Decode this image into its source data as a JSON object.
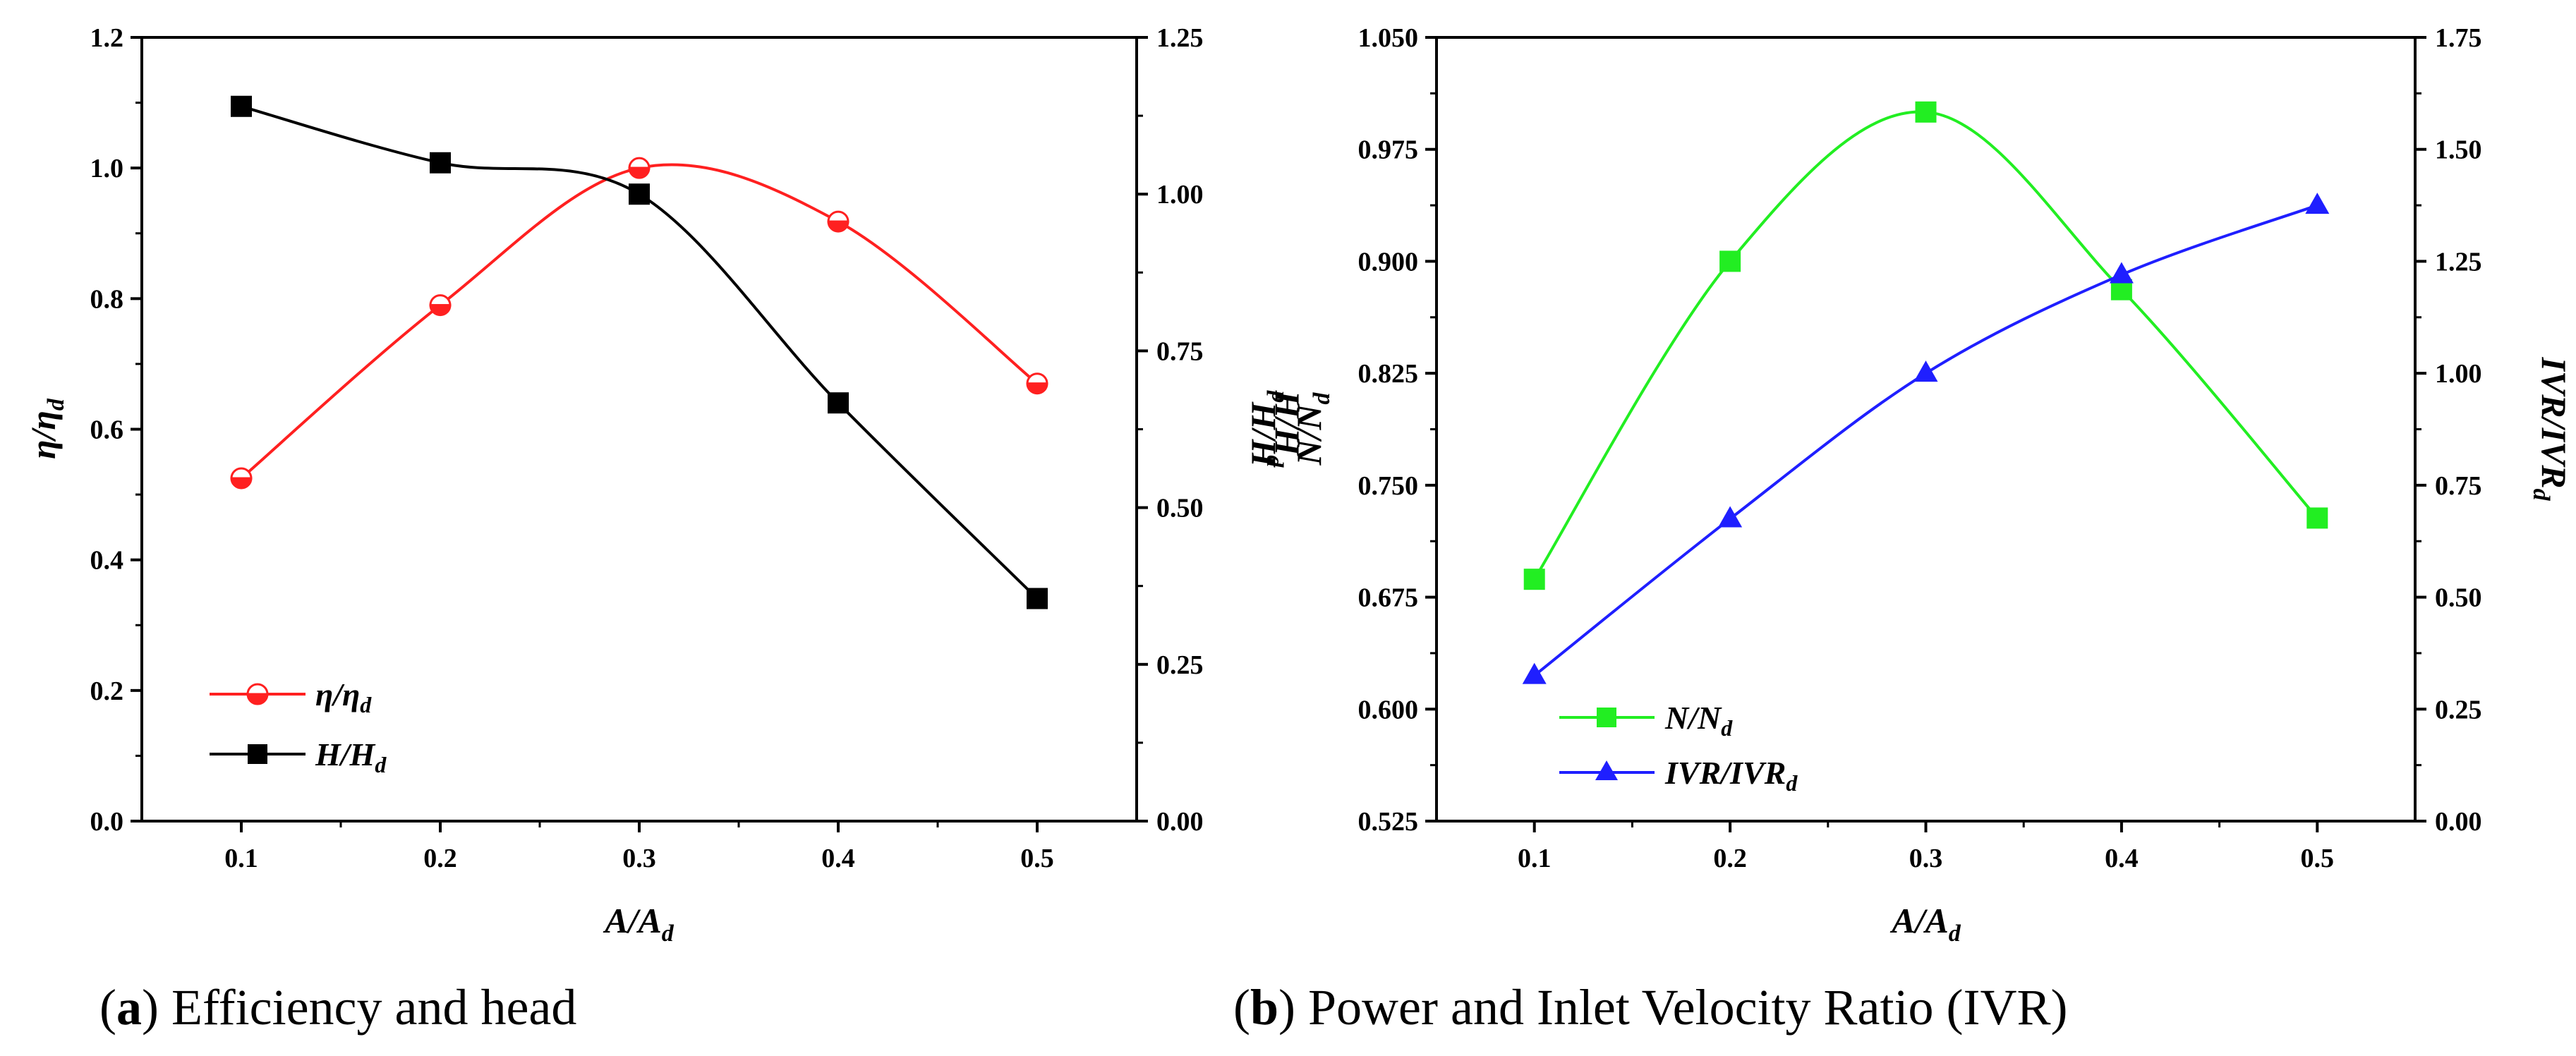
{
  "chart_data": [
    {
      "type": "line",
      "caption": {
        "letter": "a",
        "text": "Efficiency and head"
      },
      "x": [
        0.1,
        0.2,
        0.3,
        0.4,
        0.5
      ],
      "xlabel": {
        "main": "A/A",
        "sub": "d"
      },
      "xticks": [
        "0.1",
        "0.2",
        "0.3",
        "0.4",
        "0.5"
      ],
      "xlim": [
        0.05,
        0.55
      ],
      "left_axis": {
        "label": {
          "main": "η/η",
          "sub": "d"
        },
        "ylim": [
          0,
          1.2
        ],
        "ticks": [
          "0.0",
          "0.2",
          "0.4",
          "0.6",
          "0.8",
          "1.0",
          "1.2"
        ]
      },
      "right_axis": {
        "label": {
          "main": "H/H",
          "sub": "d"
        },
        "ylim": [
          0,
          1.25
        ],
        "ticks": [
          "0.00",
          "0.25",
          "0.50",
          "0.75",
          "1.00",
          "1.25"
        ]
      },
      "series": [
        {
          "name": "η/η",
          "sub": "d",
          "axis": "left",
          "color": "#ff2020",
          "marker": "half-circle",
          "values": [
            0.525,
            0.79,
            1.0,
            0.918,
            0.67
          ]
        },
        {
          "name": "H/H",
          "sub": "d",
          "axis": "right",
          "color": "#000000",
          "marker": "square",
          "values": [
            1.14,
            1.05,
            1.0,
            0.667,
            0.355
          ]
        }
      ],
      "legend_position": "bottom-left"
    },
    {
      "type": "line",
      "caption": {
        "letter": "b",
        "text": "Power and Inlet Velocity Ratio (IVR)"
      },
      "x": [
        0.1,
        0.2,
        0.3,
        0.4,
        0.5
      ],
      "xlabel": {
        "main": "A/A",
        "sub": "d"
      },
      "xticks": [
        "0.1",
        "0.2",
        "0.3",
        "0.4",
        "0.5"
      ],
      "xlim": [
        0.05,
        0.55
      ],
      "left_axis": {
        "label": {
          "main": "N/N",
          "sub": "d"
        },
        "extra_label": {
          "main": "H/H",
          "sub": "d"
        },
        "ylim": [
          0.525,
          1.05
        ],
        "ticks": [
          "0.525",
          "0.600",
          "0.675",
          "0.750",
          "0.825",
          "0.900",
          "0.975",
          "1.050"
        ]
      },
      "right_axis": {
        "label": {
          "main": "IVR/IVR",
          "sub": "d"
        },
        "ylim": [
          0,
          1.75
        ],
        "ticks": [
          "0.00",
          "0.25",
          "0.50",
          "0.75",
          "1.00",
          "1.25",
          "1.50",
          "1.75"
        ]
      },
      "series": [
        {
          "name": "N/N",
          "sub": "d",
          "axis": "left",
          "color": "#22ee22",
          "marker": "square",
          "values": [
            0.687,
            0.9,
            1.0,
            0.881,
            0.728
          ]
        },
        {
          "name": "IVR/IVR",
          "sub": "d",
          "axis": "right",
          "color": "#1f1fff",
          "marker": "triangle",
          "values": [
            0.325,
            0.675,
            1.0,
            1.22,
            1.375
          ]
        }
      ],
      "legend_position": "bottom-left"
    }
  ]
}
